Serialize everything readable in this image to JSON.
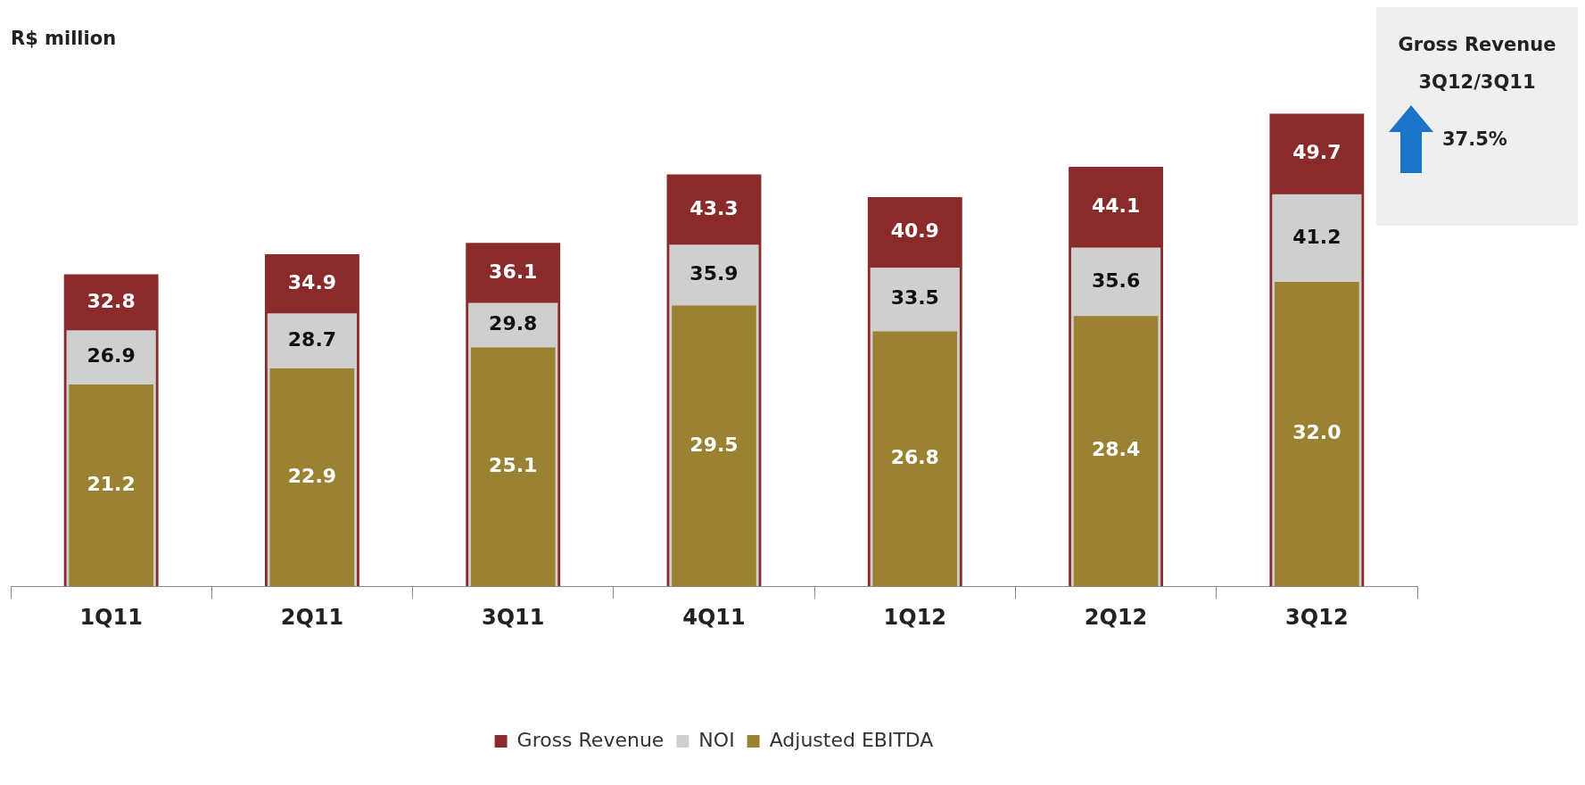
{
  "chart_data": {
    "type": "bar",
    "title": "R$ million",
    "categories": [
      "1Q11",
      "2Q11",
      "3Q11",
      "4Q11",
      "1Q12",
      "2Q12",
      "3Q12"
    ],
    "series": [
      {
        "name": "Gross Revenue",
        "color": "#8b2a2a",
        "values": [
          32.8,
          34.9,
          36.1,
          43.3,
          40.9,
          44.1,
          49.7
        ],
        "value_labels": [
          "32.8",
          "34.9",
          "36.1",
          "43.3",
          "40.9",
          "44.1",
          "49.7"
        ]
      },
      {
        "name": "NOI",
        "color": "#cfcfcf",
        "values": [
          26.9,
          28.7,
          29.8,
          35.9,
          33.5,
          35.6,
          41.2
        ],
        "value_labels": [
          "26.9",
          "28.7",
          "29.8",
          "35.9",
          "33.5",
          "35.6",
          "41.2"
        ]
      },
      {
        "name": "Adjusted EBITDA",
        "color": "#9a8232",
        "values": [
          21.2,
          22.9,
          25.1,
          29.5,
          26.8,
          28.4,
          32.0
        ],
        "value_labels": [
          "21.2",
          "22.9",
          "25.1",
          "29.5",
          "26.8",
          "28.4",
          "32.0"
        ]
      }
    ],
    "legend": "bottom",
    "grid": false,
    "annotations": [
      "Gross Revenue",
      "3Q12/3Q11",
      "37.5%"
    ]
  }
}
